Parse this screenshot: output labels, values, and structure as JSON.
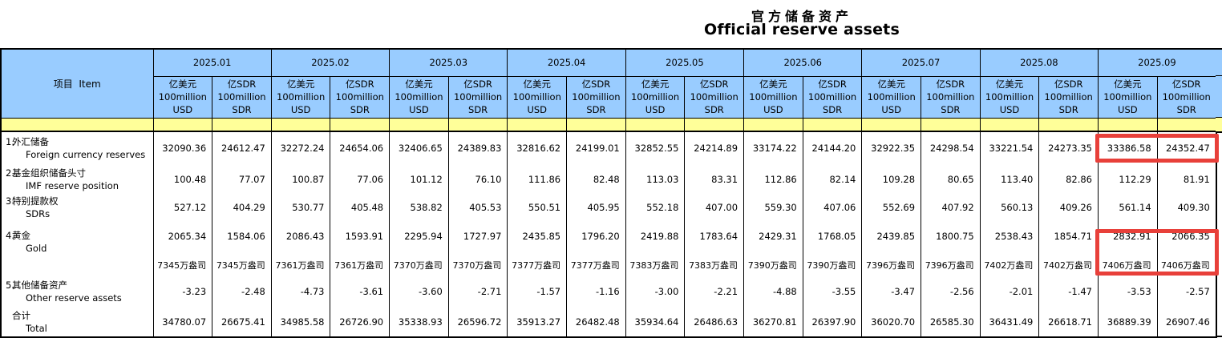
{
  "title": {
    "zh": "官方储备资产",
    "en": "Official reserve assets"
  },
  "colors": {
    "header_blue": "#99CCFF",
    "band_yellow": "#FFFF99",
    "highlight_red": "#E8403A",
    "border": "#000000"
  },
  "header": {
    "item_label": "项目  Item",
    "months": [
      "2025.01",
      "2025.02",
      "2025.03",
      "2025.04",
      "2025.05",
      "2025.06",
      "2025.07",
      "2025.08",
      "2025.09"
    ],
    "usd_unit": [
      "亿美元",
      "100million",
      "USD"
    ],
    "sdr_unit": [
      "亿SDR",
      "100million",
      "SDR"
    ]
  },
  "rows": [
    {
      "no": "1.",
      "zh": "外汇储备",
      "en": "Foreign currency reserves",
      "values": [
        "32090.36",
        "24612.47",
        "32272.24",
        "24654.06",
        "32406.65",
        "24389.83",
        "32816.62",
        "24199.01",
        "32852.55",
        "24214.89",
        "33174.22",
        "24144.20",
        "32922.35",
        "24298.54",
        "33221.54",
        "24273.35",
        "33386.58",
        "24352.47"
      ]
    },
    {
      "no": "2.",
      "zh": "基金组织储备头寸",
      "en": "IMF reserve position",
      "values": [
        "100.48",
        "77.07",
        "100.87",
        "77.06",
        "101.12",
        "76.10",
        "111.86",
        "82.48",
        "113.03",
        "83.31",
        "112.86",
        "82.14",
        "109.28",
        "80.65",
        "113.40",
        "82.86",
        "112.29",
        "81.91"
      ]
    },
    {
      "no": "3.",
      "zh": "特别提款权",
      "en": "SDRs",
      "values": [
        "527.12",
        "404.29",
        "530.77",
        "405.48",
        "538.82",
        "405.53",
        "550.51",
        "405.95",
        "552.18",
        "407.00",
        "559.30",
        "407.06",
        "552.69",
        "407.92",
        "560.13",
        "409.26",
        "561.14",
        "409.30"
      ]
    },
    {
      "no": "4.",
      "zh": "黄金",
      "en": "Gold",
      "values": [
        "2065.34",
        "1584.06",
        "2086.43",
        "1593.91",
        "2295.94",
        "1727.97",
        "2435.85",
        "1796.20",
        "2419.88",
        "1783.64",
        "2429.31",
        "1768.05",
        "2439.85",
        "1800.75",
        "2538.43",
        "1854.71",
        "2832.91",
        "2066.35"
      ],
      "ounces": [
        "7345万盎司",
        "7345万盎司",
        "7361万盎司",
        "7361万盎司",
        "7370万盎司",
        "7370万盎司",
        "7377万盎司",
        "7377万盎司",
        "7383万盎司",
        "7383万盎司",
        "7390万盎司",
        "7390万盎司",
        "7396万盎司",
        "7396万盎司",
        "7402万盎司",
        "7402万盎司",
        "7406万盎司",
        "7406万盎司"
      ]
    },
    {
      "no": "5.",
      "zh": "其他储备资产",
      "en": "Other reserve assets",
      "values": [
        "-3.23",
        "-2.48",
        "-4.73",
        "-3.61",
        "-3.60",
        "-2.71",
        "-1.57",
        "-1.16",
        "-3.00",
        "-2.21",
        "-4.88",
        "-3.55",
        "-3.47",
        "-2.56",
        "-2.01",
        "-1.47",
        "-3.53",
        "-2.57"
      ]
    },
    {
      "no": "",
      "zh": "合计",
      "en": "Total",
      "values": [
        "34780.07",
        "26675.41",
        "34985.58",
        "26726.90",
        "35338.93",
        "26596.72",
        "35913.27",
        "26482.48",
        "35934.64",
        "26486.63",
        "36270.81",
        "26397.90",
        "36020.70",
        "26585.30",
        "36431.49",
        "26618.71",
        "36889.39",
        "26907.46"
      ]
    }
  ],
  "highlights": [
    {
      "label": "foreign-currency-reserves-2025.09"
    },
    {
      "label": "gold-2025.09"
    }
  ]
}
